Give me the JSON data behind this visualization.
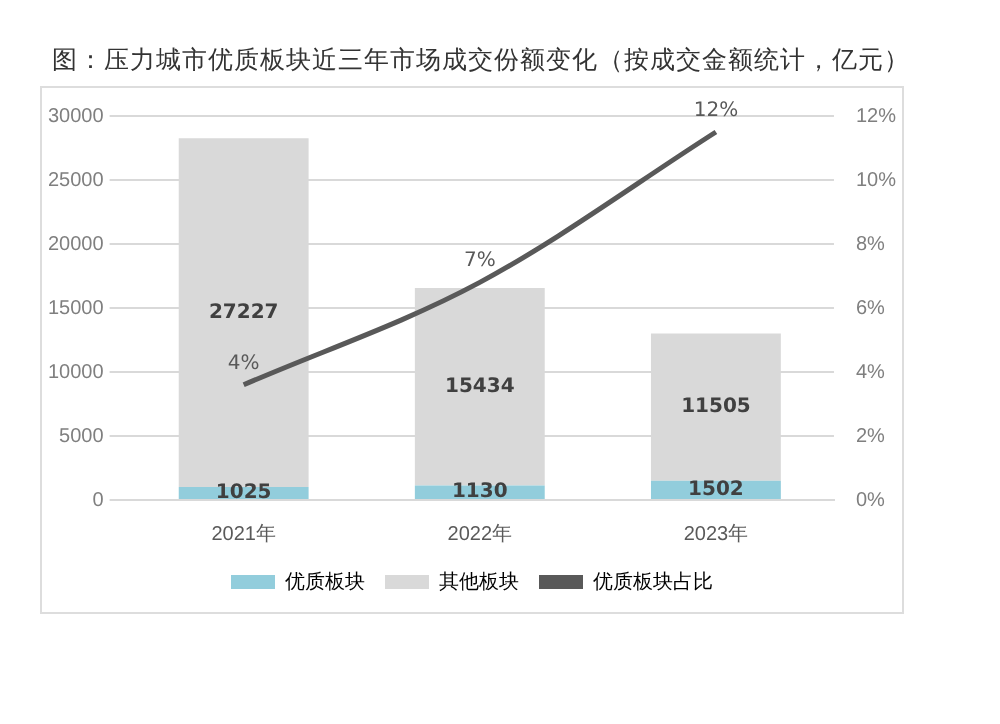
{
  "chart_data": {
    "type": "bar",
    "title": "图：压力城市优质板块近三年市场成交份额变化（按成交金额统计，亿元）",
    "categories": [
      "2021年",
      "2022年",
      "2023年"
    ],
    "stacked": true,
    "data_labels": true,
    "series": [
      {
        "name": "优质板块",
        "color": "#92cddc",
        "values": [
          1025,
          1130,
          1502
        ]
      },
      {
        "name": "其他板块",
        "color": "#d9d9d9",
        "values": [
          27227,
          15434,
          11505
        ]
      },
      {
        "name": "优质板块占比",
        "type": "line",
        "axis": "y2",
        "color": "#595959",
        "values": [
          3.6,
          6.8,
          11.5
        ],
        "value_labels": [
          "4%",
          "7%",
          "12%"
        ]
      }
    ],
    "ylim": [
      0,
      30000
    ],
    "yticks": [
      0,
      5000,
      10000,
      15000,
      20000,
      25000,
      30000
    ],
    "y2lim": [
      0,
      12
    ],
    "y2ticks": [
      {
        "value": 0,
        "label": "0%"
      },
      {
        "value": 2,
        "label": "2%"
      },
      {
        "value": 4,
        "label": "4%"
      },
      {
        "value": 6,
        "label": "6%"
      },
      {
        "value": 8,
        "label": "8%"
      },
      {
        "value": 10,
        "label": "10%"
      },
      {
        "value": 12,
        "label": "12%"
      }
    ],
    "grid": "y",
    "legend": "bottom",
    "marker": "none"
  }
}
